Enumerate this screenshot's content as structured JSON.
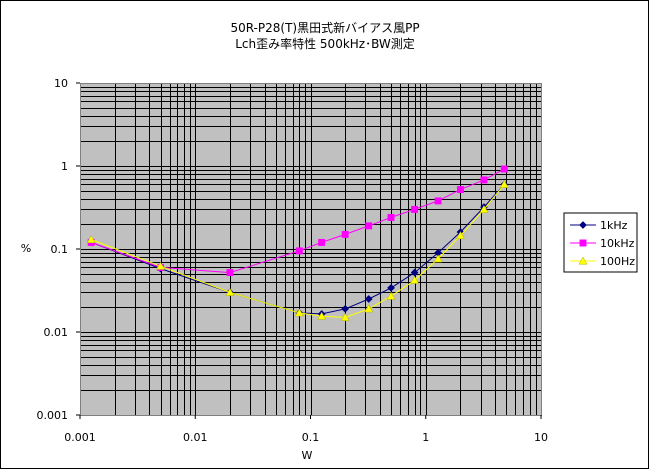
{
  "chart_data": {
    "type": "line",
    "title": "50R-P28(T)黒田式新バイアス風PP",
    "subtitle": "Lch歪み率特性  500kHz･BW測定",
    "xlabel": "W",
    "ylabel": "%",
    "xscale": "log",
    "yscale": "log",
    "xlim": [
      0.001,
      10
    ],
    "ylim": [
      0.001,
      10
    ],
    "x_ticks": [
      "0.001",
      "0.01",
      "0.1",
      "1",
      "10"
    ],
    "y_ticks": [
      "10",
      "1",
      "0.1",
      "0.01",
      "0.001"
    ],
    "grid": true,
    "plot_background": "#c0c0c0",
    "legend_position": "right",
    "series": [
      {
        "name": "1kHz",
        "color": "#000080",
        "marker": "diamond",
        "points": [
          [
            0.00125,
            0.12
          ],
          [
            0.005,
            0.058
          ],
          [
            0.02,
            0.03
          ],
          [
            0.08,
            0.017
          ],
          [
            0.125,
            0.0165
          ],
          [
            0.2,
            0.019
          ],
          [
            0.32,
            0.025
          ],
          [
            0.5,
            0.034
          ],
          [
            0.8,
            0.052
          ],
          [
            1.28,
            0.09
          ],
          [
            2.0,
            0.16
          ],
          [
            3.2,
            0.32
          ],
          [
            4.8,
            0.6
          ]
        ]
      },
      {
        "name": "10kHz",
        "color": "#ff00ff",
        "marker": "square",
        "points": [
          [
            0.00125,
            0.12
          ],
          [
            0.005,
            0.06
          ],
          [
            0.02,
            0.052
          ],
          [
            0.08,
            0.095
          ],
          [
            0.125,
            0.12
          ],
          [
            0.2,
            0.15
          ],
          [
            0.32,
            0.19
          ],
          [
            0.5,
            0.24
          ],
          [
            0.8,
            0.3
          ],
          [
            1.28,
            0.38
          ],
          [
            2.0,
            0.52
          ],
          [
            3.2,
            0.68
          ],
          [
            4.8,
            0.92
          ]
        ]
      },
      {
        "name": "100Hz",
        "color": "#ffff00",
        "marker": "triangle",
        "points": [
          [
            0.00125,
            0.13
          ],
          [
            0.005,
            0.062
          ],
          [
            0.02,
            0.03
          ],
          [
            0.08,
            0.017
          ],
          [
            0.125,
            0.0155
          ],
          [
            0.2,
            0.015
          ],
          [
            0.32,
            0.019
          ],
          [
            0.5,
            0.027
          ],
          [
            0.8,
            0.042
          ],
          [
            1.28,
            0.076
          ],
          [
            2.0,
            0.145
          ],
          [
            3.2,
            0.3
          ],
          [
            4.8,
            0.6
          ]
        ]
      }
    ]
  }
}
